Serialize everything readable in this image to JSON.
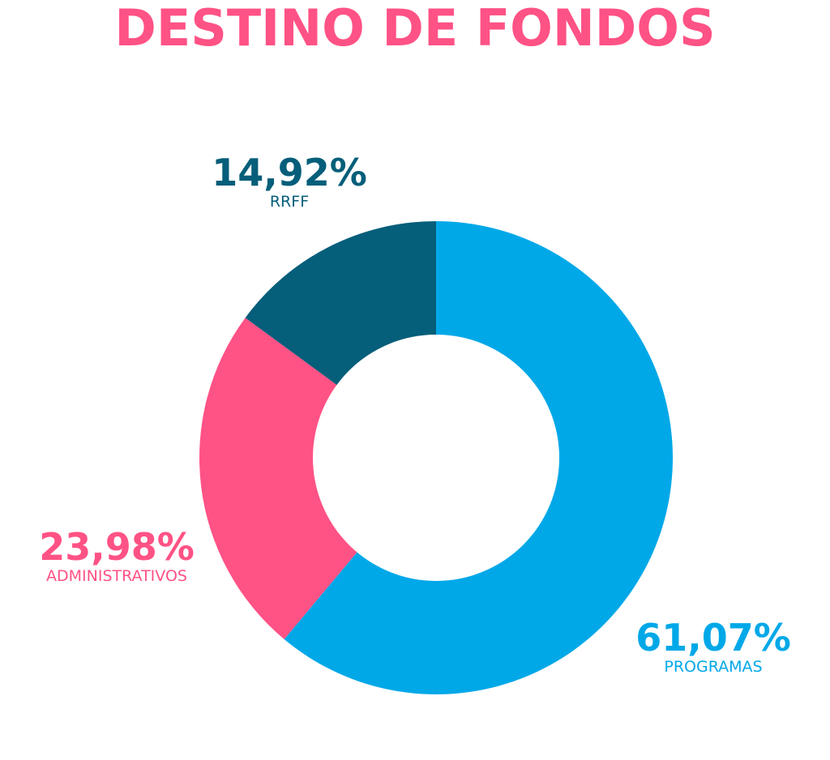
{
  "colors": {
    "title": "#ff5285",
    "programas": "#00a8e8",
    "administrativos": "#ff5285",
    "rrff": "#055e7a",
    "background": "#ffffff"
  },
  "chart_data": {
    "type": "pie",
    "variant": "donut",
    "title": "DESTINO DE FONDOS",
    "slices": [
      {
        "label": "PROGRAMAS",
        "value": 61.07,
        "value_label": "61,07%",
        "color": "#00a8e8"
      },
      {
        "label": "ADMINISTRATIVOS",
        "value": 23.98,
        "value_label": "23,98%",
        "color": "#ff5285"
      },
      {
        "label": "RRFF",
        "value": 14.92,
        "value_label": "14,92%",
        "color": "#055e7a"
      }
    ],
    "start_angle": "12 o'clock",
    "direction": "clockwise",
    "legend": "none"
  }
}
